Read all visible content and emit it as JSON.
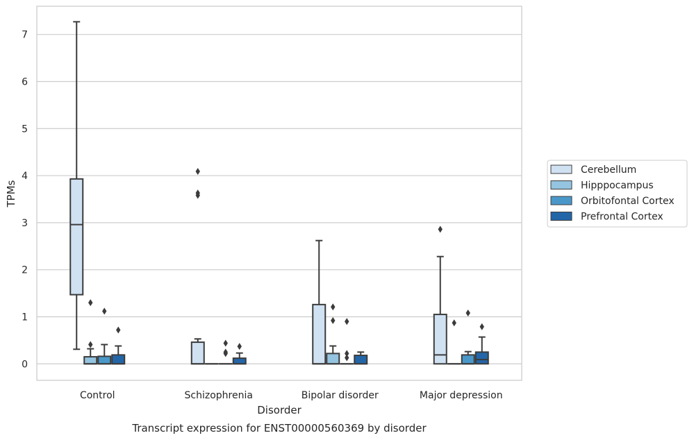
{
  "chart_data": {
    "type": "boxplot",
    "caption": "Transcript expression for ENST00000560369 by disorder",
    "xlabel": "Disorder",
    "ylabel": "TPMs",
    "ylim": [
      -0.35,
      7.6
    ],
    "yticks": [
      0,
      1,
      2,
      3,
      4,
      5,
      6,
      7
    ],
    "grid": true,
    "legend_position": "right",
    "categories": [
      "Control",
      "Schizophrenia",
      "Bipolar disorder",
      "Major depression"
    ],
    "series": [
      {
        "name": "Cerebellum",
        "color": "#d0e1f2",
        "boxes": [
          {
            "whislo": 0.31,
            "q1": 1.47,
            "med": 2.96,
            "q3": 3.93,
            "whishi": 7.27,
            "fliers": []
          },
          {
            "whislo": 0.0,
            "q1": 0.0,
            "med": 0.0,
            "q3": 0.46,
            "whishi": 0.53,
            "fliers": [
              3.58,
              3.63,
              4.09
            ]
          },
          {
            "whislo": 0.0,
            "q1": 0.0,
            "med": 0.0,
            "q3": 1.26,
            "whishi": 2.62,
            "fliers": []
          },
          {
            "whislo": 0.0,
            "q1": 0.0,
            "med": 0.19,
            "q3": 1.05,
            "whishi": 2.28,
            "fliers": [
              2.86
            ]
          }
        ]
      },
      {
        "name": "Hipppocampus",
        "color": "#94c4df",
        "boxes": [
          {
            "whislo": 0.0,
            "q1": 0.0,
            "med": 0.0,
            "q3": 0.15,
            "whishi": 0.32,
            "fliers": [
              0.41,
              1.3
            ]
          },
          {
            "whislo": 0.0,
            "q1": 0.0,
            "med": 0.0,
            "q3": 0.0,
            "whishi": 0.0,
            "fliers": []
          },
          {
            "whislo": 0.0,
            "q1": 0.0,
            "med": 0.0,
            "q3": 0.22,
            "whishi": 0.38,
            "fliers": [
              0.92,
              1.21
            ]
          },
          {
            "whislo": 0.0,
            "q1": 0.0,
            "med": 0.0,
            "q3": 0.0,
            "whishi": 0.0,
            "fliers": [
              0.87
            ]
          }
        ]
      },
      {
        "name": "Orbitofontal Cortex",
        "color": "#4a98c9",
        "boxes": [
          {
            "whislo": 0.0,
            "q1": 0.0,
            "med": 0.0,
            "q3": 0.16,
            "whishi": 0.41,
            "fliers": [
              1.12
            ]
          },
          {
            "whislo": 0.0,
            "q1": 0.0,
            "med": 0.0,
            "q3": 0.0,
            "whishi": 0.0,
            "fliers": [
              0.22,
              0.25,
              0.44
            ]
          },
          {
            "whislo": 0.0,
            "q1": 0.0,
            "med": 0.0,
            "q3": 0.0,
            "whishi": 0.0,
            "fliers": [
              0.13,
              0.22,
              0.9
            ]
          },
          {
            "whislo": 0.0,
            "q1": 0.0,
            "med": 0.0,
            "q3": 0.19,
            "whishi": 0.26,
            "fliers": [
              1.08
            ]
          }
        ]
      },
      {
        "name": "Prefrontal Cortex",
        "color": "#2366a8",
        "boxes": [
          {
            "whislo": 0.0,
            "q1": 0.0,
            "med": 0.0,
            "q3": 0.19,
            "whishi": 0.38,
            "fliers": [
              0.72
            ]
          },
          {
            "whislo": 0.0,
            "q1": 0.0,
            "med": 0.0,
            "q3": 0.12,
            "whishi": 0.23,
            "fliers": [
              0.37
            ]
          },
          {
            "whislo": 0.0,
            "q1": 0.0,
            "med": 0.0,
            "q3": 0.18,
            "whishi": 0.25,
            "fliers": []
          },
          {
            "whislo": 0.0,
            "q1": 0.0,
            "med": 0.09,
            "q3": 0.25,
            "whishi": 0.57,
            "fliers": [
              0.79
            ]
          }
        ]
      }
    ]
  }
}
